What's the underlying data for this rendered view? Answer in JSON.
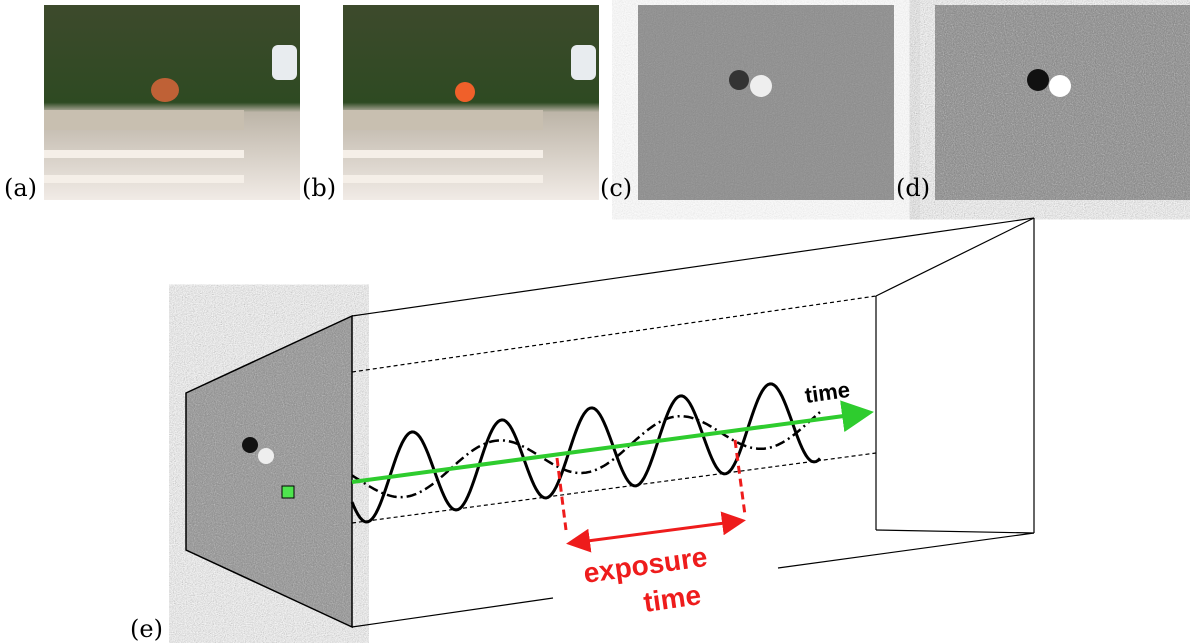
{
  "panels": [
    {
      "label": "(a)"
    },
    {
      "label": "(b)"
    },
    {
      "label": "(c)"
    },
    {
      "label": "(d)"
    }
  ],
  "diagram": {
    "label": "(e)",
    "axis_label": "time",
    "exposure_label": [
      "exposure",
      "time"
    ]
  }
}
